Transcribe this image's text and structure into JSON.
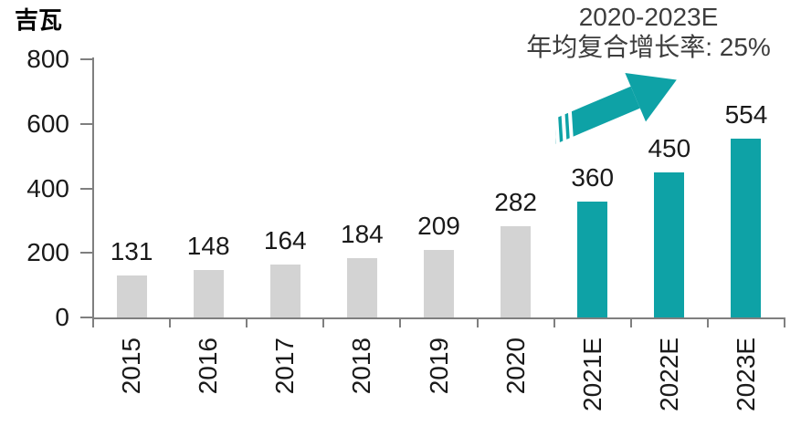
{
  "chart_data": {
    "type": "bar",
    "unit_label": "吉瓦",
    "categories": [
      "2015",
      "2016",
      "2017",
      "2018",
      "2019",
      "2020",
      "2021E",
      "2022E",
      "2023E"
    ],
    "values": [
      131,
      148,
      164,
      184,
      209,
      282,
      360,
      450,
      554
    ],
    "bar_colors": [
      "#d3d3d3",
      "#d3d3d3",
      "#d3d3d3",
      "#d3d3d3",
      "#d3d3d3",
      "#d3d3d3",
      "#0ea2a6",
      "#0ea2a6",
      "#0ea2a6"
    ],
    "historical_color": "#d3d3d3",
    "forecast_color": "#0ea2a6",
    "ylim": [
      0,
      800
    ],
    "yticks": [
      0,
      200,
      400,
      600,
      800
    ],
    "grid": false,
    "legend_position": "none",
    "xlabel": "",
    "ylabel": "吉瓦",
    "annotation": {
      "line1": "2020-2023E",
      "line2": "年均复合增长率: 25%"
    },
    "annotation_arrow": {
      "shape": "block-arrow-up-right-with-tail-stripes",
      "color": "#0ea2a6"
    },
    "axis_color": "#7f7f7f",
    "value_label_color": "#1a1a1a"
  }
}
